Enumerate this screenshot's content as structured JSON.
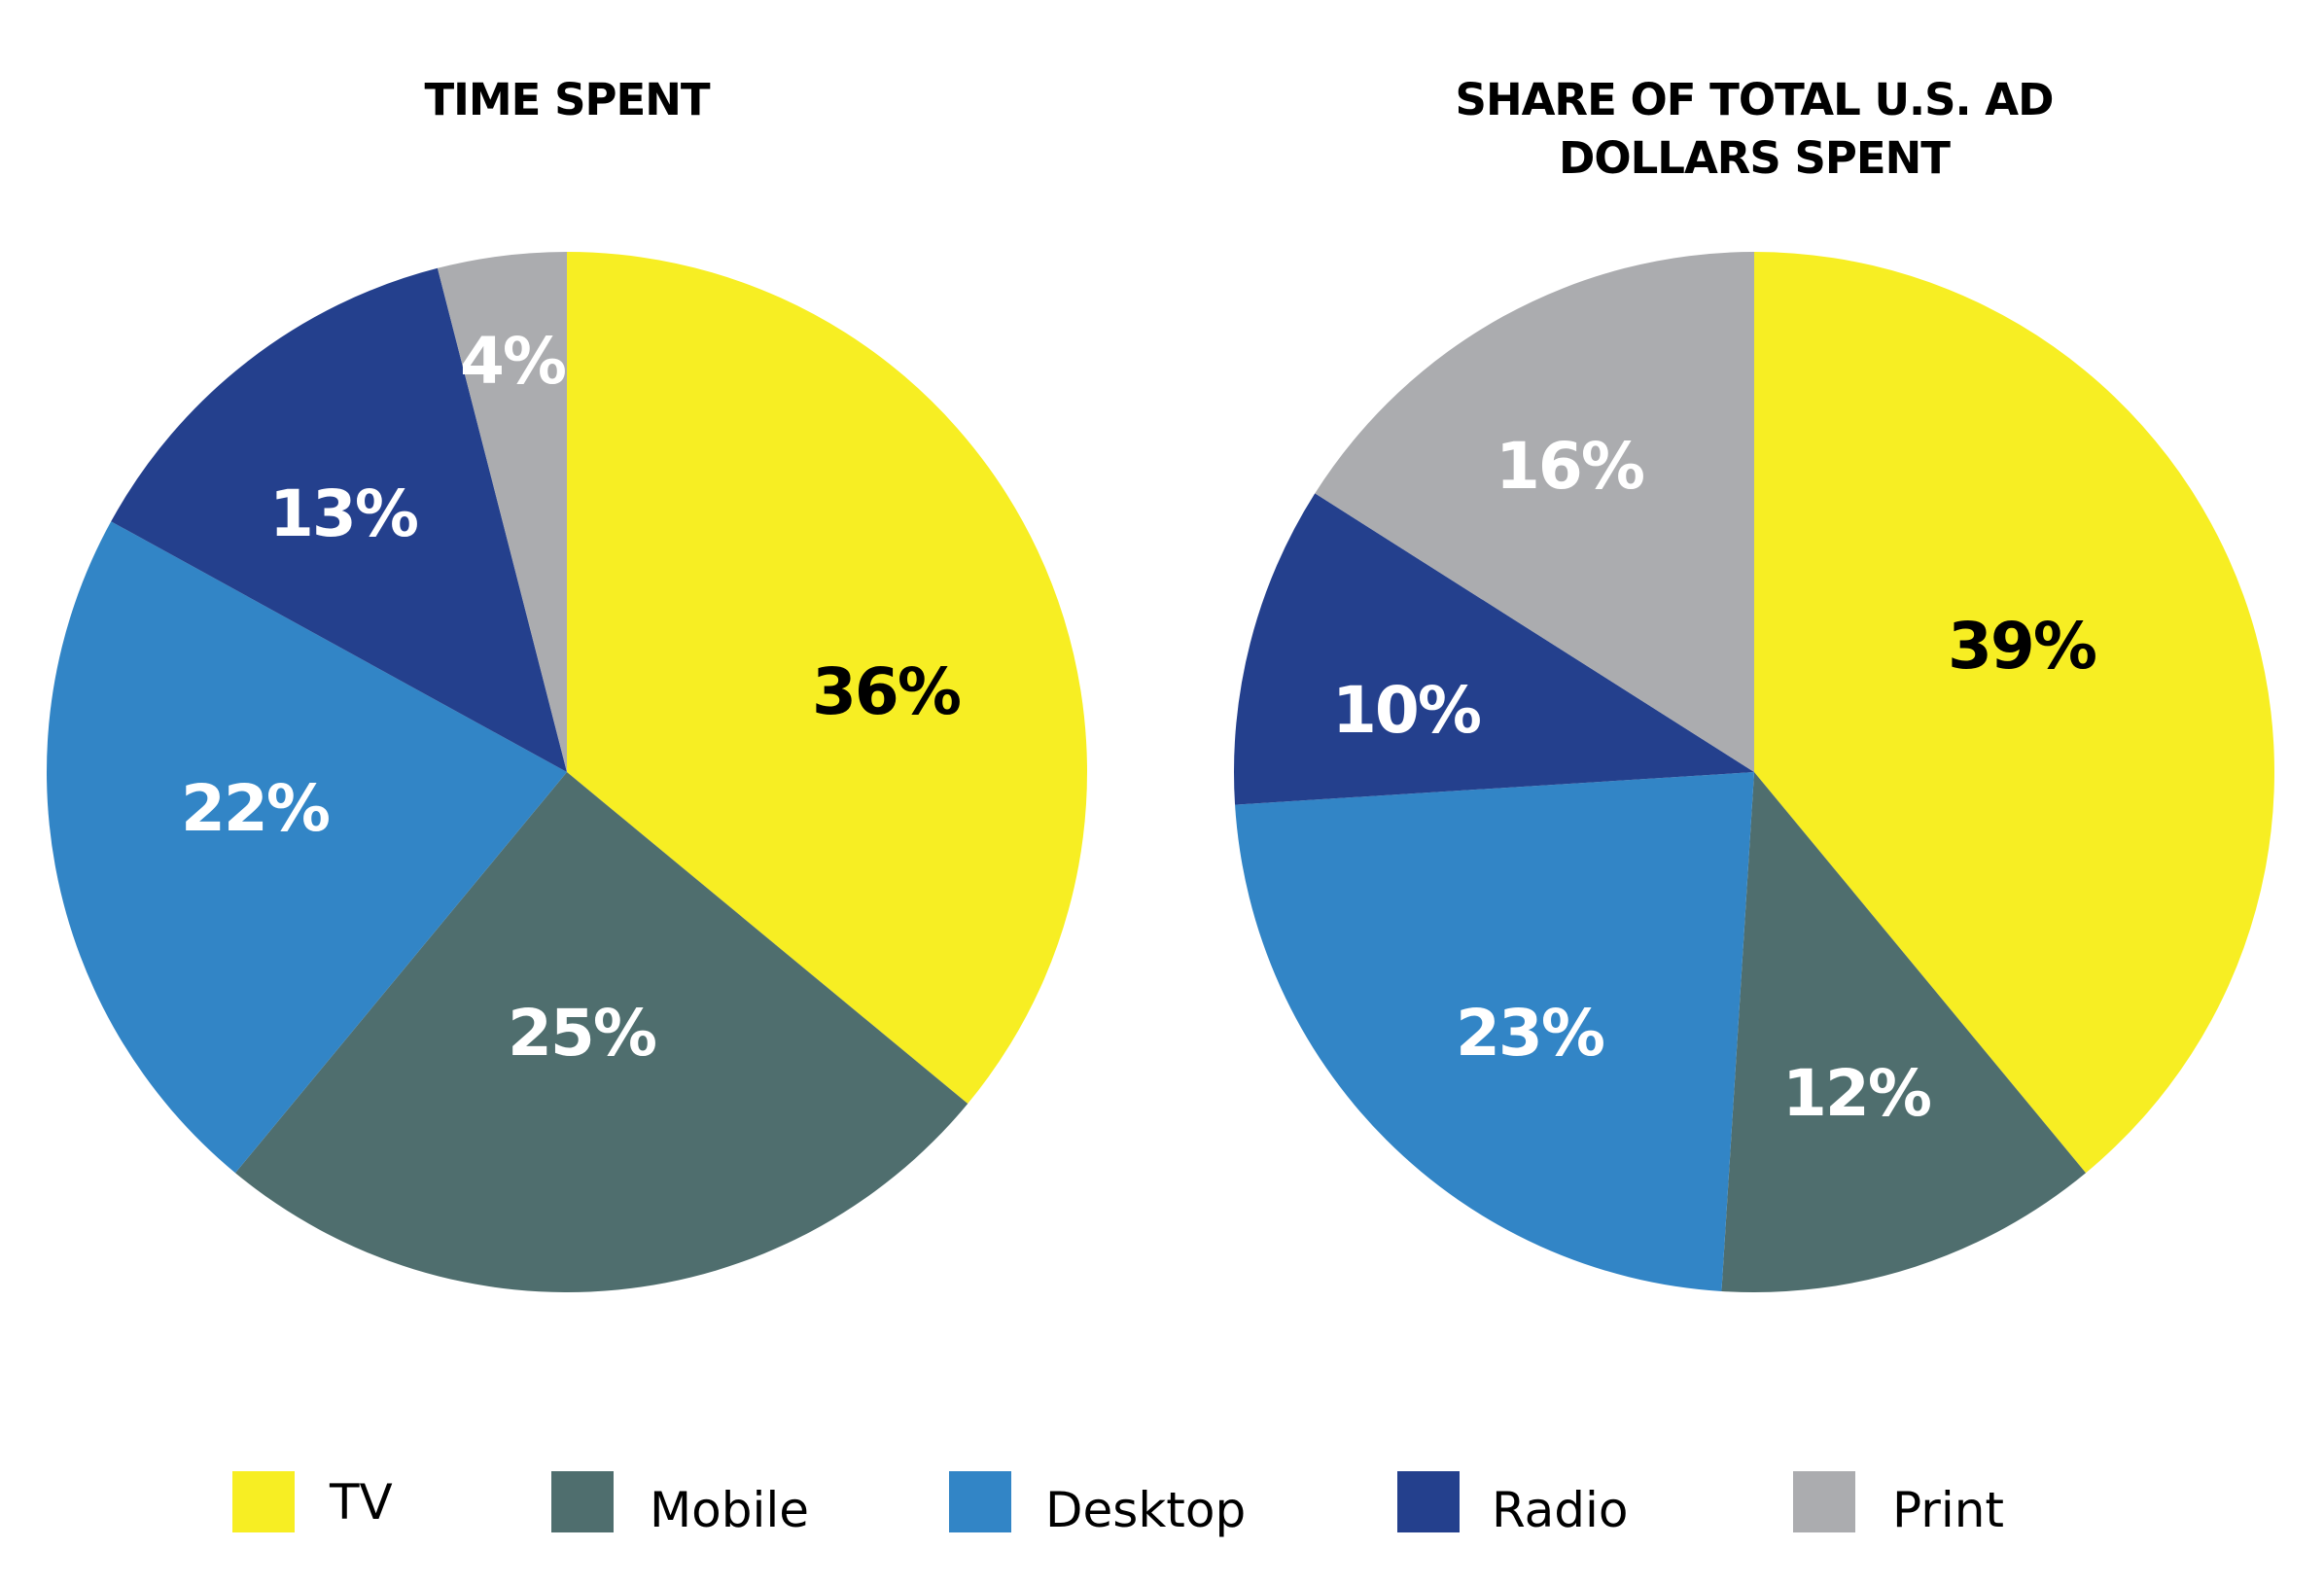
{
  "chart_data": [
    {
      "type": "pie",
      "title": "TIME SPENT",
      "categories": [
        "TV",
        "Mobile",
        "Desktop",
        "Radio",
        "Print"
      ],
      "values": [
        36,
        25,
        22,
        13,
        4
      ],
      "labels": [
        "36%",
        "25%",
        "22%",
        "13%",
        "4%"
      ],
      "start": "12 o'clock",
      "direction": "clockwise"
    },
    {
      "type": "pie",
      "title": "SHARE OF TOTAL U.S. AD DOLLARS SPENT",
      "title_lines": [
        "SHARE OF TOTAL U.S. AD",
        "DOLLARS SPENT"
      ],
      "categories": [
        "TV",
        "Mobile",
        "Desktop",
        "Radio",
        "Print"
      ],
      "values": [
        39,
        12,
        23,
        10,
        16
      ],
      "labels": [
        "39%",
        "12%",
        "23%",
        "10%",
        "16%"
      ],
      "start": "12 o'clock",
      "direction": "clockwise"
    }
  ],
  "legend": {
    "placement": "bottom",
    "items": [
      {
        "label": "TV",
        "color": "#F7EE23"
      },
      {
        "label": "Mobile",
        "color": "#4F6E6E"
      },
      {
        "label": "Desktop",
        "color": "#3285C6"
      },
      {
        "label": "Radio",
        "color": "#24408D"
      },
      {
        "label": "Print",
        "color": "#ABACAF"
      }
    ]
  },
  "label_colors": {
    "TV": "#000000",
    "Mobile": "#FFFFFF",
    "Desktop": "#FFFFFF",
    "Radio": "#FFFFFF",
    "Print": "#FFFFFF"
  }
}
